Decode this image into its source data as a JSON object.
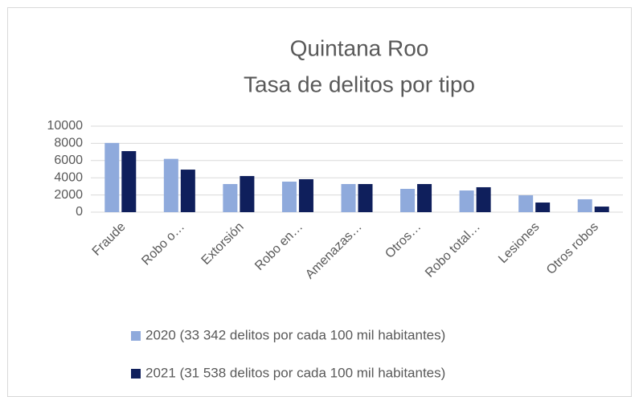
{
  "chart_data": {
    "type": "bar",
    "title": "Quintana Roo",
    "subtitle": "Tasa de delitos por tipo",
    "categories": [
      "Fraude",
      "Robo o…",
      "Extorsión",
      "Robo en…",
      "Amenazas…",
      "Otros…",
      "Robo total…",
      "Lesiones",
      "Otros robos"
    ],
    "series": [
      {
        "name": "2020 (33 342 delitos por cada 100 mil habitantes)",
        "color": "#8faadc",
        "values": [
          8050,
          6200,
          3270,
          3550,
          3270,
          2710,
          2520,
          1960,
          1500
        ]
      },
      {
        "name": "2021 (31 538 delitos por cada 100 mil habitantes)",
        "color": "#0f1f5c",
        "values": [
          7100,
          4950,
          4200,
          3830,
          3270,
          3270,
          2900,
          1120,
          650
        ]
      }
    ],
    "ylim": [
      0,
      10000
    ],
    "yticks": [
      0,
      2000,
      4000,
      6000,
      8000,
      10000
    ],
    "grid": true,
    "legend": "bottom"
  }
}
